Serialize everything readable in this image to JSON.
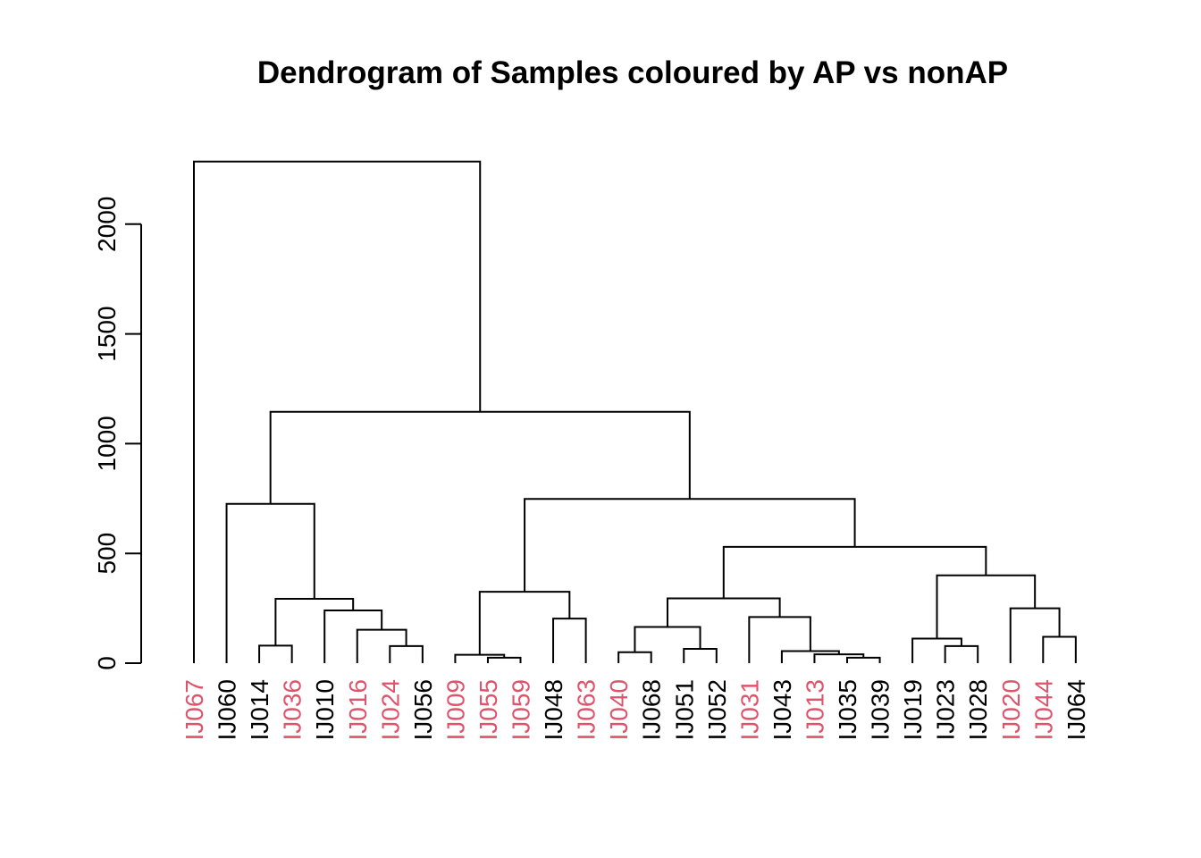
{
  "chart_data": {
    "type": "dendrogram",
    "title": "Dendrogram of Samples coloured by AP vs nonAP",
    "ylabel": "",
    "xlabel": "",
    "ylim": [
      0,
      2280
    ],
    "yticks": [
      0,
      500,
      1000,
      1500,
      2000
    ],
    "colors": {
      "AP": "#DF536B",
      "nonAP": "#000000"
    },
    "leaves": [
      {
        "label": "IJ067",
        "group": "AP"
      },
      {
        "label": "IJ060",
        "group": "nonAP"
      },
      {
        "label": "IJ014",
        "group": "nonAP"
      },
      {
        "label": "IJ036",
        "group": "AP"
      },
      {
        "label": "IJ010",
        "group": "nonAP"
      },
      {
        "label": "IJ016",
        "group": "AP"
      },
      {
        "label": "IJ024",
        "group": "AP"
      },
      {
        "label": "IJ056",
        "group": "nonAP"
      },
      {
        "label": "IJ009",
        "group": "AP"
      },
      {
        "label": "IJ055",
        "group": "AP"
      },
      {
        "label": "IJ059",
        "group": "AP"
      },
      {
        "label": "IJ048",
        "group": "nonAP"
      },
      {
        "label": "IJ063",
        "group": "AP"
      },
      {
        "label": "IJ040",
        "group": "AP"
      },
      {
        "label": "IJ068",
        "group": "nonAP"
      },
      {
        "label": "IJ051",
        "group": "nonAP"
      },
      {
        "label": "IJ052",
        "group": "nonAP"
      },
      {
        "label": "IJ031",
        "group": "AP"
      },
      {
        "label": "IJ043",
        "group": "nonAP"
      },
      {
        "label": "IJ013",
        "group": "AP"
      },
      {
        "label": "IJ035",
        "group": "nonAP"
      },
      {
        "label": "IJ039",
        "group": "nonAP"
      },
      {
        "label": "IJ019",
        "group": "nonAP"
      },
      {
        "label": "IJ023",
        "group": "nonAP"
      },
      {
        "label": "IJ028",
        "group": "nonAP"
      },
      {
        "label": "IJ020",
        "group": "AP"
      },
      {
        "label": "IJ044",
        "group": "AP"
      },
      {
        "label": "IJ064",
        "group": "nonAP"
      }
    ],
    "merges": [
      {
        "id": "m1",
        "left": "L2",
        "right": "L3",
        "height": 80
      },
      {
        "id": "m2",
        "left": "L6",
        "right": "L7",
        "height": 78
      },
      {
        "id": "m3",
        "left": "L5",
        "right": "m2",
        "height": 152
      },
      {
        "id": "m4",
        "left": "L4",
        "right": "m3",
        "height": 240
      },
      {
        "id": "m5",
        "left": "m1",
        "right": "m4",
        "height": 293
      },
      {
        "id": "m6",
        "left": "L1",
        "right": "m5",
        "height": 726
      },
      {
        "id": "m7",
        "left": "L9",
        "right": "L10",
        "height": 25
      },
      {
        "id": "m8",
        "left": "L8",
        "right": "m7",
        "height": 38
      },
      {
        "id": "m9",
        "left": "L11",
        "right": "L12",
        "height": 203
      },
      {
        "id": "m10",
        "left": "m8",
        "right": "m9",
        "height": 325
      },
      {
        "id": "m11",
        "left": "L13",
        "right": "L14",
        "height": 50
      },
      {
        "id": "m12",
        "left": "L15",
        "right": "L16",
        "height": 65
      },
      {
        "id": "m13",
        "left": "m11",
        "right": "m12",
        "height": 165
      },
      {
        "id": "m14",
        "left": "L20",
        "right": "L21",
        "height": 25
      },
      {
        "id": "m15",
        "left": "L19",
        "right": "m14",
        "height": 40
      },
      {
        "id": "m16",
        "left": "L18",
        "right": "m15",
        "height": 55
      },
      {
        "id": "m17",
        "left": "L17",
        "right": "m16",
        "height": 210
      },
      {
        "id": "m18",
        "left": "m13",
        "right": "m17",
        "height": 295
      },
      {
        "id": "m19",
        "left": "L23",
        "right": "L24",
        "height": 78
      },
      {
        "id": "m20",
        "left": "L22",
        "right": "m19",
        "height": 112
      },
      {
        "id": "m21",
        "left": "L26",
        "right": "L27",
        "height": 120
      },
      {
        "id": "m22",
        "left": "L25",
        "right": "m21",
        "height": 250
      },
      {
        "id": "m23",
        "left": "m20",
        "right": "m22",
        "height": 400
      },
      {
        "id": "m24",
        "left": "m18",
        "right": "m23",
        "height": 530
      },
      {
        "id": "m25",
        "left": "m10",
        "right": "m24",
        "height": 748
      },
      {
        "id": "m26",
        "left": "m6",
        "right": "m25",
        "height": 1145
      },
      {
        "id": "m27",
        "left": "L0",
        "right": "m26",
        "height": 2285
      }
    ]
  }
}
